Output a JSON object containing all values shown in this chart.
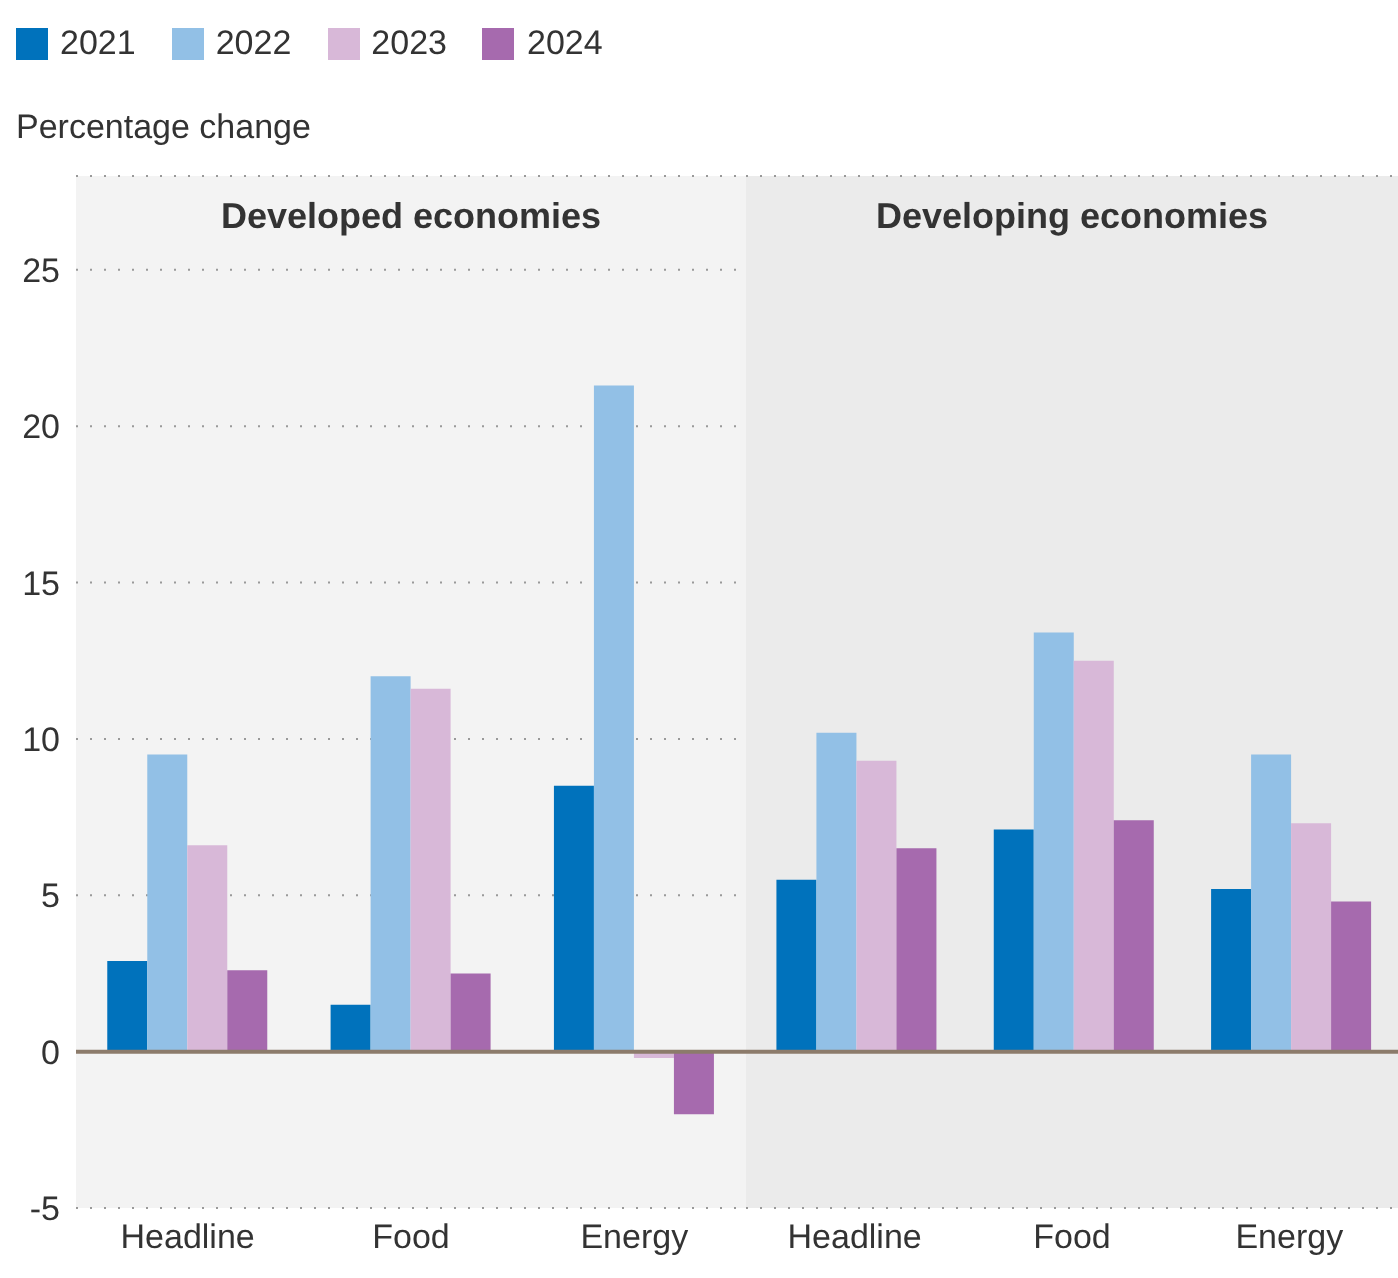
{
  "chart_data": [
    {
      "type": "bar",
      "title": "Developed economies",
      "ylabel": "Percentage change",
      "categories": [
        "Headline",
        "Food",
        "Energy"
      ],
      "series": [
        {
          "name": "2021",
          "color": "#0072bc",
          "values": [
            2.9,
            1.5,
            8.5
          ]
        },
        {
          "name": "2022",
          "color": "#92c0e6",
          "values": [
            9.5,
            12.0,
            21.3
          ]
        },
        {
          "name": "2023",
          "color": "#d8b8d8",
          "values": [
            6.6,
            11.6,
            -0.2
          ]
        },
        {
          "name": "2024",
          "color": "#a66aae",
          "values": [
            2.6,
            2.5,
            -2.0
          ]
        }
      ],
      "ylim": [
        -5,
        28
      ],
      "yticks": [
        -5,
        0,
        5,
        10,
        15,
        20,
        25
      ],
      "grid": "y",
      "legend": "top",
      "ref_lines": [
        {
          "axis": "y",
          "value": 0,
          "color": "#8c7b6b"
        }
      ]
    },
    {
      "type": "bar",
      "title": "Developing economies",
      "categories": [
        "Headline",
        "Food",
        "Energy"
      ],
      "series": [
        {
          "name": "2021",
          "color": "#0072bc",
          "values": [
            5.5,
            7.1,
            5.2
          ]
        },
        {
          "name": "2022",
          "color": "#92c0e6",
          "values": [
            10.2,
            13.4,
            9.5
          ]
        },
        {
          "name": "2023",
          "color": "#d8b8d8",
          "values": [
            9.3,
            12.5,
            7.3
          ]
        },
        {
          "name": "2024",
          "color": "#a66aae",
          "values": [
            6.5,
            7.4,
            4.8
          ]
        }
      ],
      "ylim": [
        -5,
        28
      ],
      "yticks": [
        -5,
        0,
        5,
        10,
        15,
        20,
        25
      ],
      "grid": "y",
      "tick_labels": "x",
      "ref_lines": [
        {
          "axis": "y",
          "value": 0,
          "color": "#8c7b6b"
        }
      ]
    }
  ]
}
